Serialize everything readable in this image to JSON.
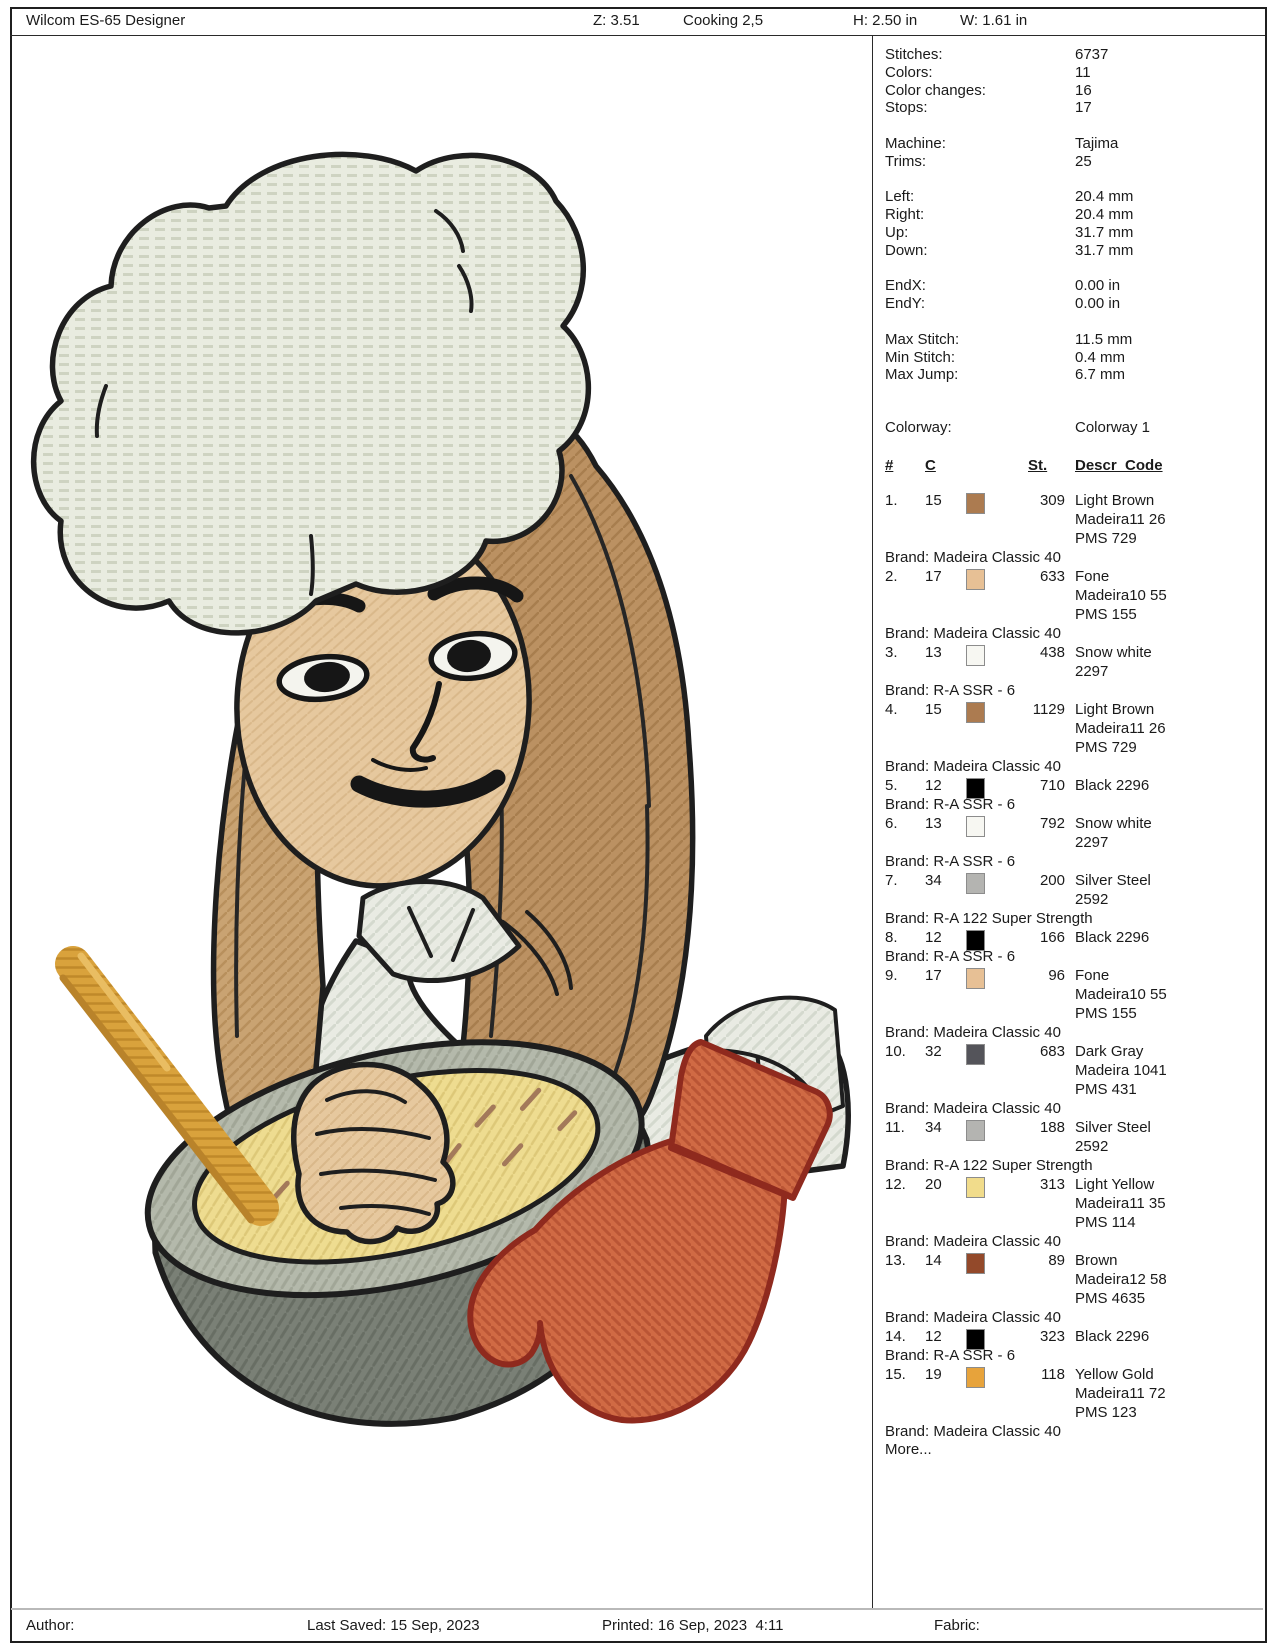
{
  "header": {
    "app_title": "Wilcom ES-65 Designer",
    "zoom_level": "Z: 3.51",
    "design_name": "Cooking 2,5",
    "height_label": "H: 2.50 in",
    "width_label": "W: 1.61 in"
  },
  "stats": {
    "groups": [
      [
        {
          "label": "Stitches:",
          "value": "6737"
        },
        {
          "label": "Colors:",
          "value": "11"
        },
        {
          "label": "Color changes:",
          "value": "16"
        },
        {
          "label": "Stops:",
          "value": "17"
        }
      ],
      [
        {
          "label": "Machine:",
          "value": "Tajima"
        },
        {
          "label": "Trims:",
          "value": "25"
        }
      ],
      [
        {
          "label": "Left:",
          "value": "20.4 mm"
        },
        {
          "label": "Right:",
          "value": "20.4 mm"
        },
        {
          "label": "Up:",
          "value": "31.7 mm"
        },
        {
          "label": "Down:",
          "value": "31.7 mm"
        }
      ],
      [
        {
          "label": "EndX:",
          "value": "0.00 in"
        },
        {
          "label": "EndY:",
          "value": "0.00 in"
        }
      ],
      [
        {
          "label": "Max Stitch:",
          "value": "11.5 mm"
        },
        {
          "label": "Min Stitch:",
          "value": "0.4 mm"
        },
        {
          "label": "Max Jump:",
          "value": "6.7 mm"
        }
      ]
    ]
  },
  "colorway": {
    "label": "Colorway:",
    "value": "Colorway 1",
    "columns": {
      "num": "#",
      "c": "C",
      "st": "St.",
      "descr": "Descr_Code"
    },
    "threads": [
      {
        "num": "1.",
        "c": "15",
        "swatch": "#ac7b50",
        "st": "309",
        "desc": "Light Brown\nMadeira11 26\nPMS 729",
        "brand": "Brand: Madeira Classic 40"
      },
      {
        "num": "2.",
        "c": "17",
        "swatch": "#e7c095",
        "st": "633",
        "desc": "Fone\nMadeira10 55\nPMS 155",
        "brand": "Brand: Madeira Classic 40"
      },
      {
        "num": "3.",
        "c": "13",
        "swatch": "#f7f7f2",
        "st": "438",
        "desc": "Snow white\n2297",
        "brand": "Brand: R-A SSR - 6"
      },
      {
        "num": "4.",
        "c": "15",
        "swatch": "#ac7b50",
        "st": "1129",
        "desc": "Light Brown\nMadeira11 26\nPMS 729",
        "brand": "Brand: Madeira Classic 40"
      },
      {
        "num": "5.",
        "c": "12",
        "swatch": "#000000",
        "st": "710",
        "desc": "Black 2296",
        "brand": "Brand: R-A SSR - 6"
      },
      {
        "num": "6.",
        "c": "13",
        "swatch": "#f7f7f2",
        "st": "792",
        "desc": "Snow white\n2297",
        "brand": "Brand: R-A SSR - 6"
      },
      {
        "num": "7.",
        "c": "34",
        "swatch": "#b4b4b1",
        "st": "200",
        "desc": "Silver Steel\n2592",
        "brand": "Brand: R-A 122 Super Strength"
      },
      {
        "num": "8.",
        "c": "12",
        "swatch": "#000000",
        "st": "166",
        "desc": "Black 2296",
        "brand": "Brand: R-A SSR - 6"
      },
      {
        "num": "9.",
        "c": "17",
        "swatch": "#e7c095",
        "st": "96",
        "desc": "Fone\nMadeira10 55\nPMS 155",
        "brand": "Brand: Madeira Classic 40"
      },
      {
        "num": "10.",
        "c": "32",
        "swatch": "#54545a",
        "st": "683",
        "desc": "Dark Gray\nMadeira 1041\nPMS 431",
        "brand": "Brand: Madeira Classic 40"
      },
      {
        "num": "11.",
        "c": "34",
        "swatch": "#b4b4b1",
        "st": "188",
        "desc": "Silver Steel\n2592",
        "brand": "Brand: R-A 122 Super Strength"
      },
      {
        "num": "12.",
        "c": "20",
        "swatch": "#f1dc8b",
        "st": "313",
        "desc": "Light Yellow\nMadeira11 35\nPMS 114",
        "brand": "Brand: Madeira Classic 40"
      },
      {
        "num": "13.",
        "c": "14",
        "swatch": "#93492a",
        "st": "89",
        "desc": "Brown\nMadeira12 58\nPMS 4635",
        "brand": "Brand: Madeira Classic 40"
      },
      {
        "num": "14.",
        "c": "12",
        "swatch": "#000000",
        "st": "323",
        "desc": "Black 2296",
        "brand": "Brand: R-A SSR - 6"
      },
      {
        "num": "15.",
        "c": "19",
        "swatch": "#e7a33b",
        "st": "118",
        "desc": "Yellow Gold\nMadeira11 72\nPMS 123",
        "brand": "Brand: Madeira Classic 40"
      }
    ],
    "more": "More..."
  },
  "footer": {
    "author": "Author:",
    "last_saved": "Last Saved: 15 Sep, 2023",
    "printed": "Printed: 16 Sep, 2023  4:11",
    "fabric": "Fabric:"
  },
  "illustration": {
    "subject": "Embroidery design of a girl chef in a chef hat stirring a mixing bowl with a wooden spoon, wearing an orange oven mitt",
    "palette": {
      "hat": "#e9ece0",
      "hair": "#bb9162",
      "hair_light": "#c9a372",
      "skin": "#e6c89e",
      "shirt": "#e9ebe3",
      "bowl_rim": "#b4b9ab",
      "bowl_body": "#7a8076",
      "batter": "#eedc90",
      "spoon": "#d9a23c",
      "mitt": "#d06a44",
      "mitt_outline": "#8f2a1e",
      "outline": "#1e1e1e"
    }
  }
}
